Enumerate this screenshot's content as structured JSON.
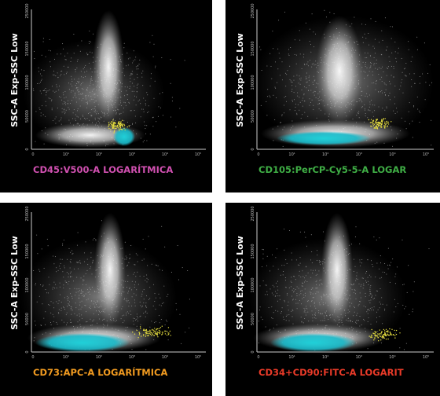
{
  "panels": [
    {
      "y_label": "SSC-A Exp-SSC Low",
      "x_label": "CD45:V500-A LOGARÍTMICA",
      "x_label_color": "#d050b0",
      "y_ticks": [
        "0",
        "50000",
        "100000",
        "150000",
        "250000"
      ],
      "x_ticks": [
        "0",
        "10¹",
        "10²",
        "10³",
        "10⁴",
        "10⁵"
      ]
    },
    {
      "y_label": "SSC-A Exp-SSC Low",
      "x_label": "CD105:PerCP-Cy5-5-A LOGAR",
      "x_label_color": "#3fae45",
      "y_ticks": [
        "0",
        "50000",
        "100000",
        "150000",
        "250000"
      ],
      "x_ticks": [
        "0",
        "10¹",
        "10²",
        "10³",
        "10⁴",
        "10⁵"
      ]
    },
    {
      "y_label": "SSC-A Exp-SSC Low",
      "x_label": "CD73:APC-A LOGARÍTMICA",
      "x_label_color": "#f09a20",
      "y_ticks": [
        "0",
        "50000",
        "100000",
        "150000",
        "250000"
      ],
      "x_ticks": [
        "0",
        "10¹",
        "10²",
        "10³",
        "10⁴",
        "10⁵"
      ]
    },
    {
      "y_label": "SSC-A Exp-SSC Low",
      "x_label": "CD34+CD90:FITC-A LOGARIT",
      "x_label_color": "#e83a28",
      "y_ticks": [
        "0",
        "50000",
        "100000",
        "150000",
        "250000"
      ],
      "x_ticks": [
        "0",
        "10¹",
        "10²",
        "10³",
        "10⁴",
        "10⁵"
      ]
    }
  ]
}
